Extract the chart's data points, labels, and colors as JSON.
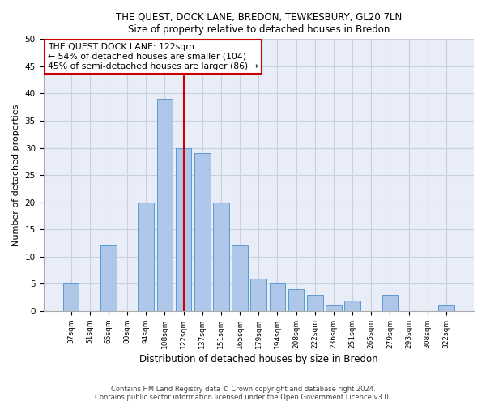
{
  "title1": "THE QUEST, DOCK LANE, BREDON, TEWKESBURY, GL20 7LN",
  "title2": "Size of property relative to detached houses in Bredon",
  "xlabel": "Distribution of detached houses by size in Bredon",
  "ylabel": "Number of detached properties",
  "categories": [
    "37sqm",
    "51sqm",
    "65sqm",
    "80sqm",
    "94sqm",
    "108sqm",
    "122sqm",
    "137sqm",
    "151sqm",
    "165sqm",
    "179sqm",
    "194sqm",
    "208sqm",
    "222sqm",
    "236sqm",
    "251sqm",
    "265sqm",
    "279sqm",
    "293sqm",
    "308sqm",
    "322sqm"
  ],
  "values": [
    5,
    0,
    12,
    0,
    20,
    39,
    30,
    29,
    20,
    12,
    6,
    5,
    4,
    3,
    1,
    2,
    0,
    3,
    0,
    0,
    1
  ],
  "bar_color": "#aec6e8",
  "bar_edge_color": "#5b9bd5",
  "marker_idx": 6,
  "annotation_line1": "THE QUEST DOCK LANE: 122sqm",
  "annotation_line2": "← 54% of detached houses are smaller (104)",
  "annotation_line3": "45% of semi-detached houses are larger (86) →",
  "annotation_box_color": "#ffffff",
  "annotation_box_edge_color": "#cc0000",
  "marker_line_color": "#cc0000",
  "footer1": "Contains HM Land Registry data © Crown copyright and database right 2024.",
  "footer2": "Contains public sector information licensed under the Open Government Licence v3.0.",
  "bg_color": "#ffffff",
  "axes_bg_color": "#e8edf8",
  "grid_color": "#c8d0e0",
  "ylim_max": 50,
  "yticks": [
    0,
    5,
    10,
    15,
    20,
    25,
    30,
    35,
    40,
    45,
    50
  ]
}
